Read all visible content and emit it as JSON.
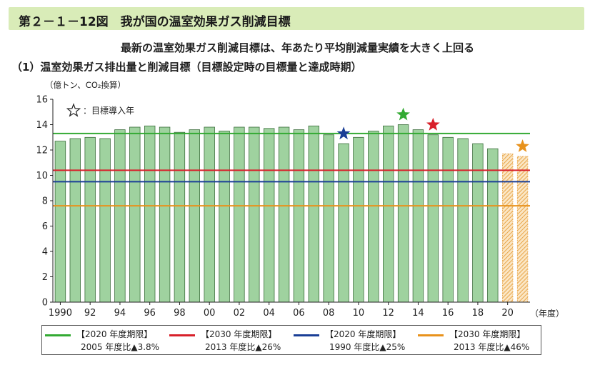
{
  "figure_title": "第２－１－12図　我が国の温室効果ガス削減目標",
  "subtitle": "最新の温室効果ガス削減目標は、年あたり平均削減量実績を大きく上回る",
  "subtitle2": "（1）温室効果ガス排出量と削減目標（目標設定時の目標量と達成時期）",
  "chart_data": {
    "type": "bar",
    "ylabel": "（億トン、CO₂換算）",
    "xlabel": "（年度）",
    "ylim": [
      0,
      16
    ],
    "yticks": [
      0,
      2,
      4,
      6,
      8,
      10,
      12,
      14,
      16
    ],
    "xtick_labels": [
      "1990",
      "92",
      "94",
      "96",
      "98",
      "00",
      "02",
      "04",
      "06",
      "08",
      "10",
      "12",
      "14",
      "16",
      "18",
      "20"
    ],
    "grid": false,
    "categories": [
      "1990",
      "1991",
      "1992",
      "1993",
      "1994",
      "1995",
      "1996",
      "1997",
      "1998",
      "1999",
      "2000",
      "2001",
      "2002",
      "2003",
      "2004",
      "2005",
      "2006",
      "2007",
      "2008",
      "2009",
      "2010",
      "2011",
      "2012",
      "2013",
      "2014",
      "2015",
      "2016",
      "2017",
      "2018",
      "2019",
      "2020",
      "2021"
    ],
    "values": [
      12.7,
      12.9,
      13.0,
      12.9,
      13.6,
      13.8,
      13.9,
      13.8,
      13.4,
      13.6,
      13.8,
      13.5,
      13.8,
      13.8,
      13.7,
      13.8,
      13.6,
      13.9,
      13.2,
      12.5,
      13.0,
      13.5,
      13.9,
      14.0,
      13.6,
      13.2,
      13.0,
      12.9,
      12.5,
      12.1,
      11.7,
      11.5
    ],
    "hatched_categories": [
      "2020",
      "2021"
    ],
    "bar_color": "#9fd29f",
    "bar_border": "#3c6e3c",
    "hatch_color": "#e8a64a",
    "star_note": "：目標導入年",
    "target_lines": [
      {
        "label1": "【2020 年度期限】",
        "label2": "2005 年度比▲3.8%",
        "value": 13.3,
        "color": "#33aa33",
        "star_year": "2013"
      },
      {
        "label1": "【2030 年度期限】",
        "label2": "2013 年度比▲26%",
        "value": 10.4,
        "color": "#d8202a",
        "star_year": "2015"
      },
      {
        "label1": "【2020 年度期限】",
        "label2": "1990 年度比▲25%",
        "value": 9.5,
        "color": "#1a3e96",
        "star_year": "2009"
      },
      {
        "label1": "【2030 年度期限】",
        "label2": "2013 年度比▲46%",
        "value": 7.6,
        "color": "#e8921c",
        "star_year": "2021"
      }
    ]
  }
}
